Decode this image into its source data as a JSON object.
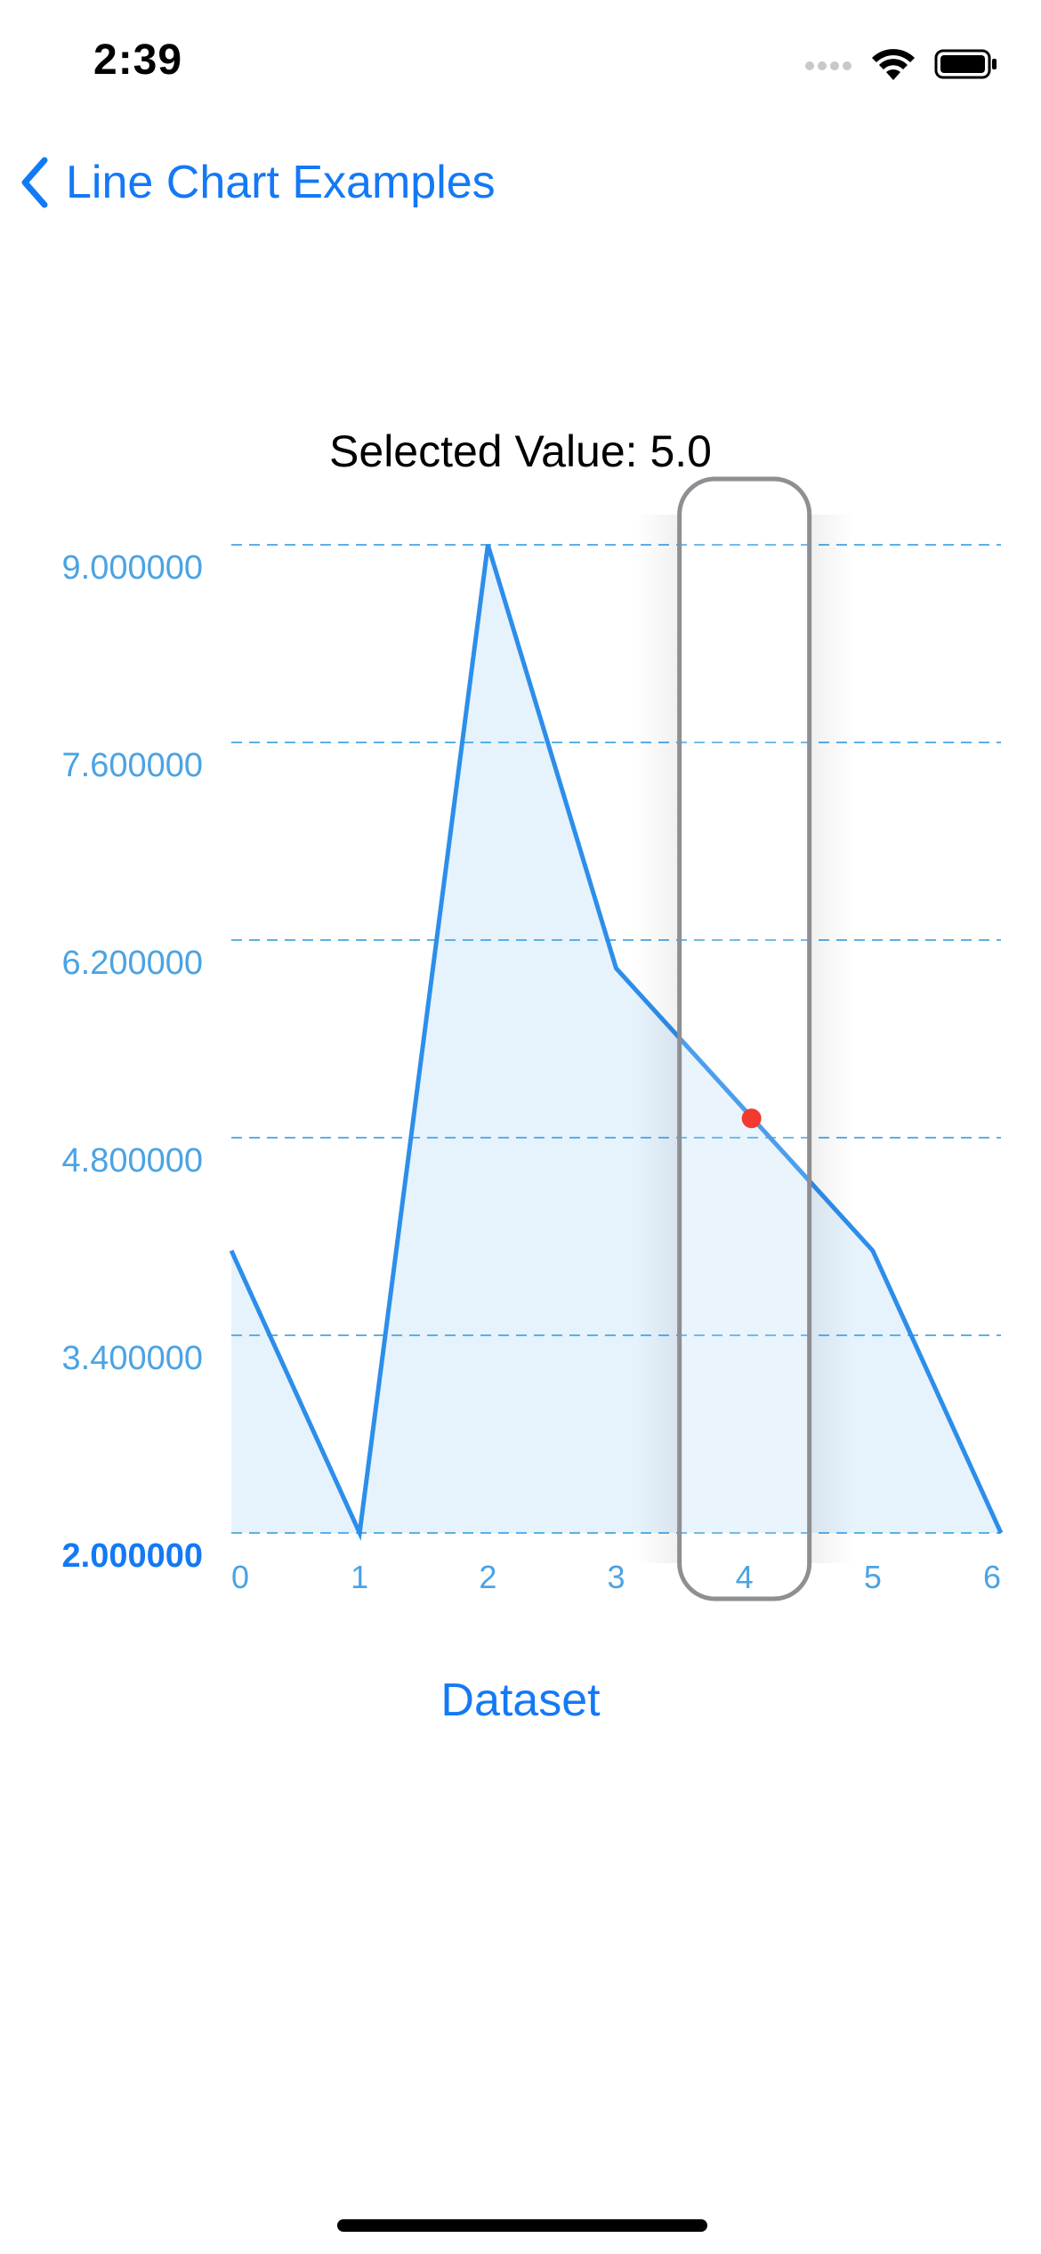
{
  "status_bar": {
    "time": "2:39"
  },
  "nav": {
    "back_label": "Line Chart Examples"
  },
  "selected_label": "Selected Value: 5.0",
  "dataset_button": "Dataset",
  "colors": {
    "accent": "#1479F5",
    "line": "#2D8EEA",
    "fill": "#E6F2FC",
    "grid": "#5AB0E8",
    "axis_label": "#4BA3E3",
    "selected_dot": "#F23A30",
    "selection_border": "#8E8E93"
  },
  "chart_data": {
    "type": "area",
    "x": [
      0,
      1,
      2,
      3,
      4,
      5,
      6
    ],
    "values": [
      4.0,
      2.0,
      9.0,
      6.0,
      5.0,
      4.0,
      2.0
    ],
    "ylim": [
      2.0,
      9.0
    ],
    "y_ticks": [
      "9.000000",
      "7.600000",
      "6.200000",
      "4.800000",
      "3.400000",
      "2.000000"
    ],
    "x_ticks": [
      "0",
      "1",
      "2",
      "3",
      "4",
      "5",
      "6"
    ],
    "selected_index": 4,
    "selected_value": 5.0,
    "grid": "horizontal dashed"
  }
}
